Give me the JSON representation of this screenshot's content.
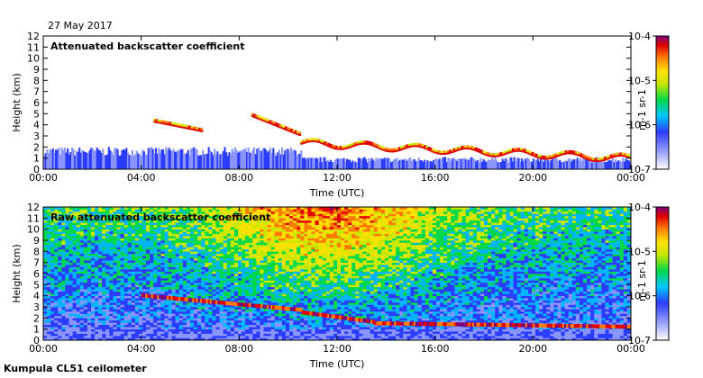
{
  "date": "27 May 2017",
  "footer": "Kumpula CL51 ceilometer",
  "chart_data": [
    {
      "type": "heatmap",
      "title": "Attenuated backscatter coefficient",
      "xlabel": "Time (UTC)",
      "ylabel": "Height (km)",
      "x_ticks": [
        "00:00",
        "04:00",
        "08:00",
        "12:00",
        "16:00",
        "20:00",
        "00:00"
      ],
      "y_ticks": [
        "0",
        "1",
        "2",
        "3",
        "4",
        "5",
        "6",
        "7",
        "8",
        "9",
        "10",
        "11",
        "12"
      ],
      "xlim_hours": [
        0,
        24
      ],
      "ylim_km": [
        0,
        12
      ],
      "colorbar": {
        "label": "m-1 sr-1",
        "ticks": [
          "10-7",
          "10-6",
          "10-5",
          "10-4"
        ],
        "range_log10": [
          -7,
          -4
        ]
      },
      "features": [
        {
          "name": "cloud-layer",
          "time_h": [
            4.5,
            6.5
          ],
          "height_km": [
            3.2,
            4.3
          ]
        },
        {
          "name": "cloud-layer",
          "time_h": [
            8.5,
            10.5
          ],
          "height_km": [
            2.6,
            4.8
          ]
        },
        {
          "name": "boundary-layer-top",
          "time_h": [
            10.5,
            24
          ],
          "height_km": [
            0.7,
            2.5
          ]
        }
      ]
    },
    {
      "type": "heatmap",
      "title": "Raw attenuated backscatter coefficient",
      "xlabel": "Time (UTC)",
      "ylabel": "Height (km)",
      "x_ticks": [
        "00:00",
        "04:00",
        "08:00",
        "12:00",
        "16:00",
        "20:00",
        "00:00"
      ],
      "y_ticks": [
        "0",
        "1",
        "2",
        "3",
        "4",
        "5",
        "6",
        "7",
        "8",
        "9",
        "10",
        "11",
        "12"
      ],
      "xlim_hours": [
        0,
        24
      ],
      "ylim_km": [
        0,
        12
      ],
      "colorbar": {
        "label": "m-1 sr-1",
        "ticks": [
          "10-7",
          "10-6",
          "10-5",
          "10-4"
        ],
        "range_log10": [
          -7,
          -4
        ]
      }
    }
  ]
}
